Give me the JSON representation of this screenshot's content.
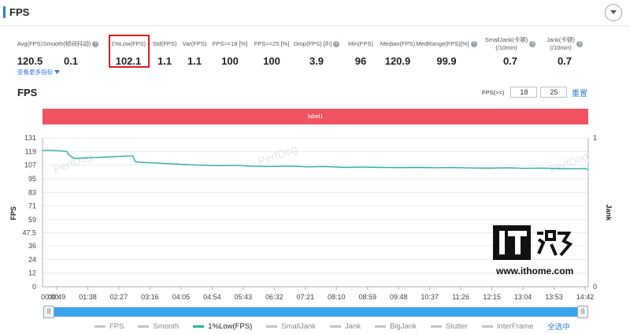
{
  "header": {
    "title": "FPS"
  },
  "metrics": [
    {
      "label": "Avg(FPS)",
      "value": "120.5",
      "help": false
    },
    {
      "label": "Smooth(帧间抖动)",
      "value": "0.1",
      "help": true
    },
    {
      "label": "1%Low(FPS)",
      "value": "102.1",
      "help": false
    },
    {
      "label": "Std(FPS)",
      "value": "1.1",
      "help": false
    },
    {
      "label": "Var(FPS)",
      "value": "1.1",
      "help": false
    },
    {
      "label": "FPS>=18 [%]",
      "value": "100",
      "help": false
    },
    {
      "label": "FPS>=25 [%]",
      "value": "100",
      "help": false
    },
    {
      "label": "Drop(FPS) [/h]",
      "value": "3.9",
      "help": true
    },
    {
      "label": "Min(FPS)",
      "value": "96",
      "help": false
    },
    {
      "label": "Median(FPS)",
      "value": "120.9",
      "help": false
    },
    {
      "label": "MedRange(FPS)[%]",
      "value": "99.9",
      "help": true
    },
    {
      "label": "SmallJank(卡顿)\n(/10min)",
      "value": "0.7",
      "help": true
    },
    {
      "label": "Jank(卡顿)\n(/10min)",
      "value": "0.7",
      "help": true
    }
  ],
  "more_link": "查看更多指标",
  "chart_title": "FPS",
  "fps_filter": {
    "label": "FPS(>=)",
    "v1": "18",
    "v2": "25",
    "reset": "重置"
  },
  "label_bar": "label1",
  "legend": [
    {
      "name": "FPS",
      "active": false
    },
    {
      "name": "Smooth",
      "active": false
    },
    {
      "name": "1%Low(FPS)",
      "active": true
    },
    {
      "name": "SmallJank",
      "active": false
    },
    {
      "name": "Jank",
      "active": false
    },
    {
      "name": "BigJank",
      "active": false
    },
    {
      "name": "Stutter",
      "active": false
    },
    {
      "name": "InterFrame",
      "active": false
    }
  ],
  "select_all": "全选中",
  "watermark": {
    "brand": "IT之家",
    "url": "www.ithome.com",
    "faint": "PerfDog"
  },
  "colors": {
    "accent": "#2f7fd6",
    "series": "#2ab0a4",
    "label_bar": "#f05262",
    "highlight": "#d81e1e"
  },
  "chart_data": {
    "type": "line",
    "title": "",
    "ylabel": "FPS",
    "y2label": "Jank",
    "yticks": [
      0,
      12,
      24,
      36,
      47.5,
      59,
      71,
      83,
      95,
      107,
      119,
      131
    ],
    "ytick_labels": [
      "0",
      "12",
      "24",
      "36",
      "47.5",
      "59",
      "71",
      "83",
      "95",
      "107",
      "119",
      "131"
    ],
    "ylim": [
      0,
      131
    ],
    "y2ticks": [
      0,
      1
    ],
    "y2lim": [
      0,
      1
    ],
    "xticks": [
      "00:00",
      "00:49",
      "01:38",
      "02:27",
      "03:16",
      "04:05",
      "04:54",
      "05:43",
      "06:32",
      "07:21",
      "08:10",
      "08:59",
      "09:48",
      "10:37",
      "11:26",
      "12:15",
      "13:04",
      "13:53",
      "14:42"
    ],
    "xlim_seconds": [
      0,
      905
    ],
    "grid": "horizontal",
    "series": [
      {
        "name": "1%Low(FPS)",
        "x": [
          0,
          15,
          30,
          40,
          44,
          52,
          60,
          80,
          100,
          120,
          140,
          150,
          154,
          160,
          180,
          200,
          220,
          240,
          260,
          290,
          320,
          350,
          380,
          410,
          440,
          470,
          500,
          530,
          560,
          590,
          620,
          650,
          680,
          710,
          740,
          770,
          800,
          830,
          860,
          890,
          900,
          905
        ],
        "values": [
          120,
          120,
          119.5,
          119,
          116,
          113,
          113,
          113.5,
          114,
          114.5,
          115,
          115,
          110,
          109.5,
          109,
          108.5,
          108,
          107.5,
          107,
          106.5,
          106.8,
          106,
          105.8,
          106.2,
          105.5,
          105.8,
          105,
          105.3,
          105,
          104.8,
          105,
          104.7,
          104.9,
          104.5,
          104.3,
          104.6,
          104.2,
          104.4,
          104,
          103.8,
          104,
          103
        ]
      }
    ]
  }
}
